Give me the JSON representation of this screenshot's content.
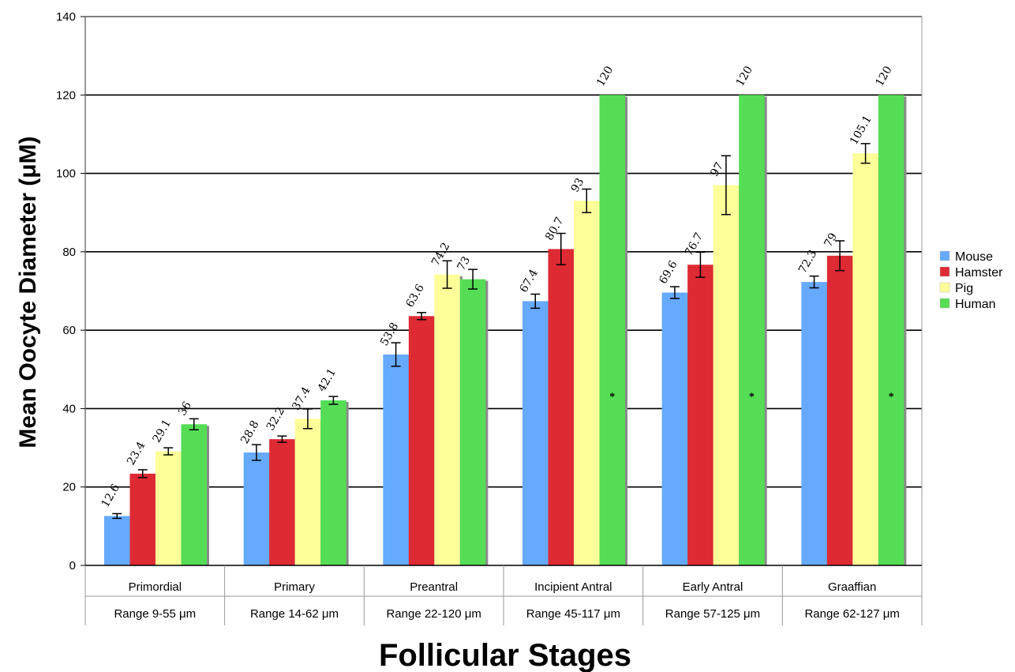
{
  "chart_data": {
    "type": "bar",
    "ylabel": "Mean Oocyte Diameter (μM)",
    "xlabel": "Follicular Stages",
    "ylim": [
      0,
      140
    ],
    "yticks": [
      0,
      20,
      40,
      60,
      80,
      100,
      120,
      140
    ],
    "grid": true,
    "legend_position": "right",
    "categories": [
      "Primordial",
      "Primary",
      "Preantral",
      "Incipient Antral",
      "Early Antral",
      "Graaffian"
    ],
    "ranges": [
      "Range 9-55 μm",
      "Range  14-62 μm",
      "Range 22-120 μm",
      "Range 45-117 μm",
      "Range 57-125 μm",
      "Range 62-127 μm"
    ],
    "series": [
      {
        "name": "Mouse",
        "color": "#66aaff",
        "values": [
          12.6,
          28.8,
          53.8,
          67.4,
          69.6,
          72.3
        ],
        "labels": [
          "12.6",
          "28.8",
          "53.8",
          "67.4",
          "69.6",
          "72.3"
        ],
        "errors": [
          0.6,
          2.0,
          3.0,
          1.8,
          1.5,
          1.5
        ]
      },
      {
        "name": "Hamster",
        "color": "#dd2a33",
        "values": [
          23.4,
          32.2,
          63.6,
          80.7,
          76.7,
          79
        ],
        "labels": [
          "23.4",
          "32.2",
          "63.6",
          "80.7",
          "76.7",
          "79"
        ],
        "errors": [
          1.0,
          0.8,
          0.9,
          4.0,
          3.2,
          3.8
        ]
      },
      {
        "name": "Pig",
        "color": "#ffff99",
        "values": [
          29.1,
          37.4,
          74.2,
          93,
          97,
          105.1
        ],
        "labels": [
          "29.1",
          "37.4",
          "74.2",
          "93",
          "97",
          "105.1"
        ],
        "errors": [
          0.9,
          2.5,
          3.5,
          3.0,
          7.5,
          2.5
        ]
      },
      {
        "name": "Human",
        "color": "#55dd55",
        "values": [
          36,
          42.1,
          73,
          120,
          120,
          120
        ],
        "labels": [
          "36",
          "42.1",
          "73",
          "120",
          "120",
          "120"
        ],
        "errors": [
          1.4,
          1.0,
          2.5,
          0,
          0,
          0
        ]
      }
    ],
    "annotations": [
      {
        "category_index": 3,
        "series_index": 3,
        "text": "*"
      },
      {
        "category_index": 4,
        "series_index": 3,
        "text": "*"
      },
      {
        "category_index": 5,
        "series_index": 3,
        "text": "*"
      }
    ]
  }
}
